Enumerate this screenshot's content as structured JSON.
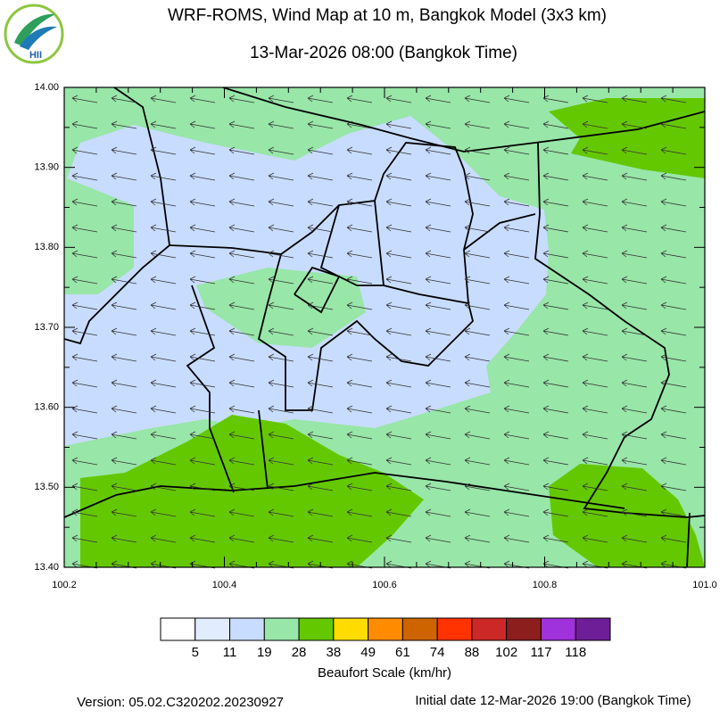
{
  "header": {
    "title": "WRF-ROMS, Wind Map at 10 m, Bangkok Model (3x3 km)",
    "subtitle": "13-Mar-2026 08:00 (Bangkok Time)"
  },
  "logo": {
    "text": "HII"
  },
  "map": {
    "xlim": [
      100.2,
      101.0
    ],
    "ylim": [
      13.4,
      14.0
    ],
    "xticks": [
      {
        "value": 100.2,
        "label": "100.2"
      },
      {
        "value": 100.4,
        "label": "100.4"
      },
      {
        "value": 100.6,
        "label": "100.6"
      },
      {
        "value": 100.8,
        "label": "100.8"
      },
      {
        "value": 101.0,
        "label": "101.0"
      }
    ],
    "yticks": [
      {
        "value": 13.4,
        "label": "13.40"
      },
      {
        "value": 13.5,
        "label": "13.50"
      },
      {
        "value": 13.6,
        "label": "13.60"
      },
      {
        "value": 13.7,
        "label": "13.70"
      },
      {
        "value": 13.8,
        "label": "13.80"
      },
      {
        "value": 13.9,
        "label": "13.90"
      },
      {
        "value": 14.0,
        "label": "14.00"
      }
    ]
  },
  "legend": {
    "label": "Beaufort Scale (km/hr)",
    "levels": [
      5,
      11,
      19,
      28,
      38,
      49,
      61,
      74,
      88,
      102,
      117,
      118
    ],
    "colors": [
      "#ffffff",
      "#e1ecff",
      "#c8dcff",
      "#98e6a8",
      "#64c800",
      "#ffdc00",
      "#ff8c00",
      "#cd6400",
      "#ff3200",
      "#cd2828",
      "#8c1e1e",
      "#a032dc",
      "#6e1e96"
    ]
  },
  "footer": {
    "version": "Version: 05.02.C320202.20230927",
    "initial_date": "Initial date 12-Mar-2026 19:00 (Bangkok Time)"
  }
}
